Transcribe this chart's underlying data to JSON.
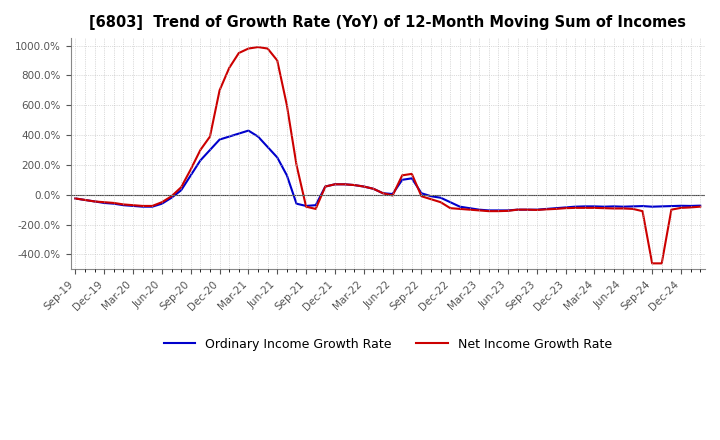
{
  "title": "[6803]  Trend of Growth Rate (YoY) of 12-Month Moving Sum of Incomes",
  "background_color": "#ffffff",
  "grid_color": "#bbbbbb",
  "legend_labels": [
    "Ordinary Income Growth Rate",
    "Net Income Growth Rate"
  ],
  "line_colors": [
    "#0000cc",
    "#cc0000"
  ],
  "ylim": [
    -500,
    1050
  ],
  "yticks": [
    -400,
    -200,
    0,
    200,
    400,
    600,
    800,
    1000
  ],
  "x_labels": [
    "Sep-19",
    "Dec-19",
    "Mar-20",
    "Jun-20",
    "Sep-20",
    "Dec-20",
    "Mar-21",
    "Jun-21",
    "Sep-21",
    "Dec-21",
    "Mar-22",
    "Jun-22",
    "Sep-22",
    "Dec-22",
    "Mar-23",
    "Jun-23",
    "Sep-23",
    "Dec-23",
    "Mar-24",
    "Jun-24",
    "Sep-24",
    "Dec-24"
  ],
  "ordinary_income": [
    -25,
    -35,
    -45,
    -55,
    -60,
    -70,
    -75,
    -80,
    -80,
    -60,
    -20,
    30,
    130,
    230,
    300,
    370,
    390,
    410,
    430,
    390,
    320,
    250,
    130,
    -60,
    -75,
    -70,
    55,
    70,
    70,
    65,
    55,
    40,
    10,
    5,
    100,
    110,
    10,
    -10,
    -20,
    -50,
    -80,
    -90,
    -100,
    -105,
    -105,
    -105,
    -100,
    -100,
    -100,
    -95,
    -90,
    -85,
    -80,
    -78,
    -78,
    -80,
    -78,
    -80,
    -78,
    -76,
    -80,
    -78,
    -76,
    -74,
    -75,
    -73
  ],
  "net_income": [
    -25,
    -35,
    -45,
    -50,
    -55,
    -65,
    -70,
    -75,
    -75,
    -50,
    -10,
    50,
    170,
    300,
    390,
    700,
    850,
    950,
    980,
    990,
    980,
    900,
    600,
    200,
    -80,
    -95,
    55,
    70,
    70,
    65,
    55,
    40,
    10,
    -5,
    130,
    140,
    -10,
    -30,
    -50,
    -90,
    -95,
    -100,
    -105,
    -110,
    -110,
    -108,
    -100,
    -100,
    -102,
    -98,
    -95,
    -90,
    -88,
    -88,
    -88,
    -90,
    -92,
    -92,
    -95,
    -110,
    -460,
    -460,
    -100,
    -88,
    -85,
    -80
  ],
  "n_ticks": 22,
  "tick_step": 3
}
